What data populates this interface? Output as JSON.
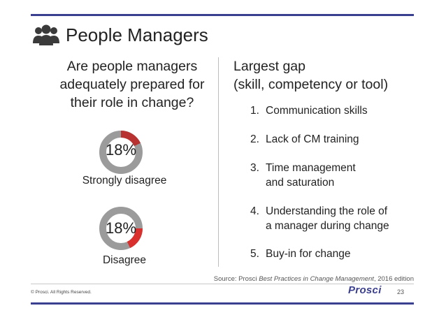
{
  "slide": {
    "title": "People Managers",
    "title_icon": "people-group-icon",
    "question": "Are people managers adequately prepared for their role in change?",
    "gap_title_line1": "Largest gap",
    "gap_title_line2": "(skill, competency or tool)"
  },
  "donuts": [
    {
      "pct_text": "18%",
      "value_pct": 18,
      "label": "Strongly disagree",
      "highlight_color": "#b83232",
      "base_color": "#9b9b9b"
    },
    {
      "pct_text": "18%",
      "value_pct": 18,
      "label": "Disagree",
      "highlight_color": "#d9302e",
      "base_color": "#9b9b9b"
    }
  ],
  "gaps": [
    {
      "num": "1.",
      "line1": "Communication skills",
      "line2": ""
    },
    {
      "num": "2.",
      "line1": "Lack of CM training",
      "line2": ""
    },
    {
      "num": "3.",
      "line1": "Time management",
      "line2": "and saturation"
    },
    {
      "num": "4.",
      "line1": "Understanding the role of",
      "line2": "a manager during change"
    },
    {
      "num": "5.",
      "line1": "Buy-in for change",
      "line2": ""
    }
  ],
  "footer": {
    "source_prefix": "Source: Prosci ",
    "source_title": "Best Practices in Change Management",
    "source_suffix": ", 2016 edition",
    "copyright": "© Prosci. All Rights Reserved.",
    "logo": "Prosci",
    "page": "23"
  },
  "colors": {
    "accent": "#3b3f8f"
  }
}
